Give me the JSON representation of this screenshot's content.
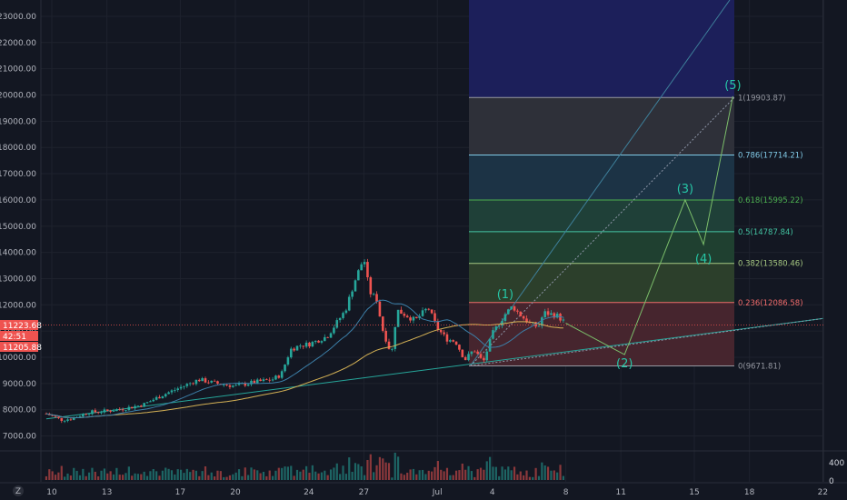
{
  "chart_data": {
    "type": "candlestick",
    "y_axis": {
      "ticks": [
        "23000.00",
        "22000.00",
        "21000.00",
        "20000.00",
        "19000.00",
        "18000.00",
        "17000.00",
        "16000.00",
        "15000.00",
        "14000.00",
        "13000.00",
        "12000.00",
        "11000.00",
        "10000.00",
        "9000.00",
        "8000.00",
        "7000.00"
      ],
      "range": [
        6500,
        23600
      ]
    },
    "x_axis": {
      "ticks": [
        "10",
        "13",
        "17",
        "20",
        "24",
        "27",
        "Jul",
        "4",
        "8",
        "11",
        "15",
        "18",
        "22"
      ],
      "day_offsets": [
        0,
        3,
        7,
        10,
        14,
        17,
        21,
        24,
        28,
        31,
        35,
        38,
        42
      ]
    },
    "price_badges": [
      {
        "text": "11223.68",
        "color": "#ef5350"
      },
      {
        "text": "42:51",
        "color": "#ef5350"
      },
      {
        "text": "11205.88",
        "color": "#ef5350"
      }
    ],
    "price_series_keypoints": [
      [
        -0.3,
        7850
      ],
      [
        0.5,
        7620
      ],
      [
        1,
        7650
      ],
      [
        2,
        7900
      ],
      [
        3,
        7950
      ],
      [
        4,
        8050
      ],
      [
        5,
        8200
      ],
      [
        6,
        8550
      ],
      [
        7,
        8850
      ],
      [
        8,
        9150
      ],
      [
        9,
        9000
      ],
      [
        10,
        8900
      ],
      [
        11,
        9050
      ],
      [
        12,
        9150
      ],
      [
        12.5,
        9350
      ],
      [
        13,
        10300
      ],
      [
        13.5,
        10450
      ],
      [
        14,
        10500
      ],
      [
        15,
        10800
      ],
      [
        15.5,
        11300
      ],
      [
        16,
        11800
      ],
      [
        16.5,
        12900
      ],
      [
        17,
        13800
      ],
      [
        17.3,
        12500
      ],
      [
        17.7,
        12200
      ],
      [
        18,
        11100
      ],
      [
        18.5,
        10100
      ],
      [
        18.8,
        11800
      ],
      [
        19.3,
        11600
      ],
      [
        19.8,
        11400
      ],
      [
        20.5,
        11900
      ],
      [
        21,
        11100
      ],
      [
        21.5,
        10700
      ],
      [
        22,
        10600
      ],
      [
        22.5,
        9900
      ],
      [
        23,
        10300
      ],
      [
        23.5,
        9800
      ],
      [
        24,
        10900
      ],
      [
        24.7,
        11650
      ],
      [
        25.1,
        11950
      ],
      [
        25.4,
        11700
      ],
      [
        26,
        11300
      ],
      [
        26.5,
        11150
      ],
      [
        26.8,
        11700
      ],
      [
        27.5,
        11600
      ],
      [
        28,
        11300
      ]
    ],
    "volume_axis": {
      "ticks": [
        "400",
        "0"
      ]
    },
    "fibonacci": {
      "levels": [
        {
          "ratio": "1",
          "price": 19903.87,
          "label": "1(19903.87)",
          "color": "#9598a1",
          "fill": "#2e3039"
        },
        {
          "ratio": "0.786",
          "price": 17714.21,
          "label": "0.786(17714.21)",
          "color": "#81c9e6",
          "fill": "#1c3345"
        },
        {
          "ratio": "0.618",
          "price": 15995.22,
          "label": "0.618(15995.22)",
          "color": "#4caf50",
          "fill": "#1f4038"
        },
        {
          "ratio": "0.5",
          "price": 14787.84,
          "label": "0.5(14787.84)",
          "color": "#43c3a1",
          "fill": "#1f4030"
        },
        {
          "ratio": "0.382",
          "price": 13580.46,
          "label": "0.382(13580.46)",
          "color": "#a6c882",
          "fill": "#2c3f2b"
        },
        {
          "ratio": "0.236",
          "price": 12086.58,
          "label": "0.236(12086.58)",
          "color": "#f06b6b",
          "fill": "#46252e"
        },
        {
          "ratio": "0",
          "price": 9671.81,
          "label": "0(9671.81)",
          "color": "#9598a1",
          "fill": "#3d2228"
        }
      ],
      "extension_fill": "#1c1f5a"
    },
    "elliott_waves": [
      {
        "label": "(1)",
        "day": 24.7,
        "price": 11900
      },
      {
        "label": "(2)",
        "day": 31.2,
        "price": 10100
      },
      {
        "label": "(3)",
        "day": 34.5,
        "price": 16000
      },
      {
        "label": "(4)",
        "day": 35.5,
        "price": 14300
      },
      {
        "label": "(5)",
        "day": 37.1,
        "price": 19950
      }
    ],
    "colors": {
      "up": "#26a69a",
      "down": "#ef5350",
      "ma_long": "#d4b155",
      "ma_short": "#3c7fa8",
      "trend": "#26a69a",
      "wave": "#26c6a6"
    }
  },
  "toolbar": {
    "zoom_label": "Z"
  }
}
